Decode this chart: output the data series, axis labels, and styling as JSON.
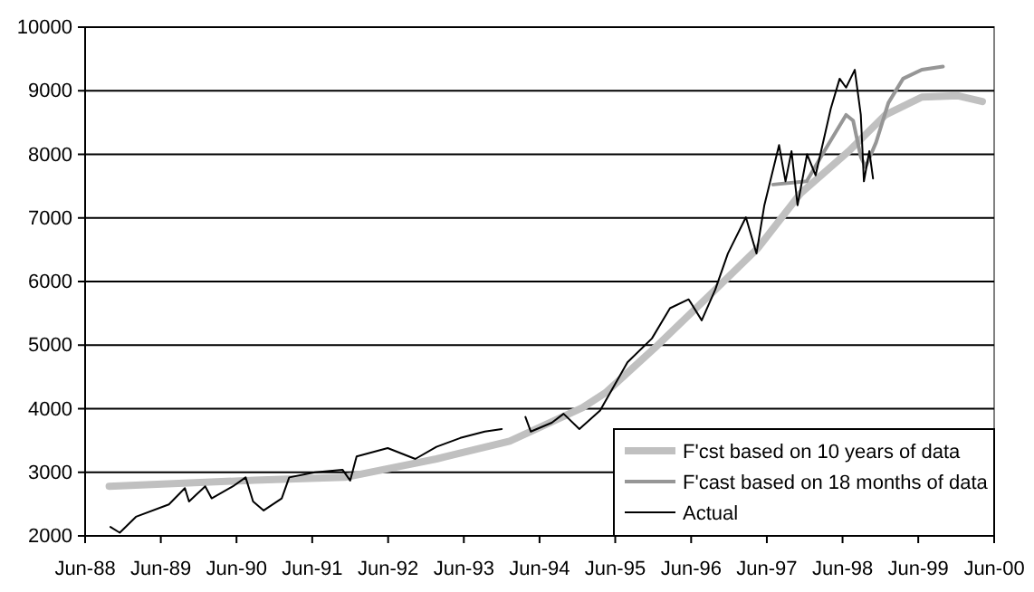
{
  "chart_data": {
    "type": "line",
    "xlim": [
      "1988-06",
      "2000-06"
    ],
    "xticks": [
      {
        "value": "1988-06",
        "label": "Jun-88"
      },
      {
        "value": "1989-06",
        "label": "Jun-89"
      },
      {
        "value": "1990-06",
        "label": "Jun-90"
      },
      {
        "value": "1991-06",
        "label": "Jun-91"
      },
      {
        "value": "1992-06",
        "label": "Jun-92"
      },
      {
        "value": "1993-06",
        "label": "Jun-93"
      },
      {
        "value": "1994-06",
        "label": "Jun-94"
      },
      {
        "value": "1995-06",
        "label": "Jun-95"
      },
      {
        "value": "1996-06",
        "label": "Jun-96"
      },
      {
        "value": "1997-06",
        "label": "Jun-97"
      },
      {
        "value": "1998-06",
        "label": "Jun-98"
      },
      {
        "value": "1999-06",
        "label": "Jun-99"
      },
      {
        "value": "2000-06",
        "label": "Jun-00"
      }
    ],
    "ylim": [
      2000,
      10000
    ],
    "yticks": [
      2000,
      3000,
      4000,
      5000,
      6000,
      7000,
      8000,
      9000,
      10000
    ],
    "grid": "y",
    "legend": "bottom right",
    "marker": "none",
    "line_style": "solid",
    "series": [
      {
        "name": "F'cst based on 10 years of data",
        "color": "#c0c0c0",
        "x": [
          "1988-09-25",
          "1990-08-25",
          "1991-11-05",
          "1993-01-20",
          "1994-01-08",
          "1994-12-25",
          "1995-04-15",
          "1995-12-10",
          "1996-09-25",
          "1997-04-20",
          "1997-11-10",
          "1998-07-01",
          "1998-12-25",
          "1999-06-18",
          "1999-12-10",
          "2000-04-05"
        ],
        "values": [
          2780,
          2875,
          2920,
          3210,
          3490,
          4015,
          4250,
          4960,
          5870,
          6530,
          7385,
          8050,
          8620,
          8900,
          8920,
          8830
        ]
      },
      {
        "name": "F'cast based on 18 months of data",
        "color": "#969696",
        "x": [
          "1997-07-01",
          "1997-12-10",
          "1998-03-05",
          "1998-06-18",
          "1998-07-22",
          "1998-08-28",
          "1998-09-20",
          "1998-11-10",
          "1999-01-08",
          "1999-03-20",
          "1999-06-18",
          "1999-09-28"
        ],
        "values": [
          7525,
          7575,
          8050,
          8620,
          8530,
          7960,
          7800,
          8190,
          8810,
          9190,
          9330,
          9380
        ]
      },
      {
        "name": "Actual",
        "color": "#000000",
        "x": [
          "1988-10-01",
          "1988-11-15",
          "1989-02-01",
          "1989-07-10",
          "1989-09-25",
          "1989-10-15",
          "1990-01-01",
          "1990-02-01",
          "1990-05-15",
          "1990-07-15",
          "1990-08-20",
          "1990-10-10",
          "1991-01-05",
          "1991-02-10",
          "1991-06-15",
          "1991-10-25",
          "1991-12-01",
          "1992-01-01",
          "1992-05-30",
          "1992-10-10",
          "1993-01-20",
          "1993-05-15",
          "1993-09-10",
          "1993-12-01",
          "1994-01-15",
          "1994-03-25",
          "1994-04-20",
          "1994-07-30",
          "1994-09-25",
          "1994-12-10",
          "1995-03-20",
          "1995-07-30",
          "1995-11-25",
          "1996-02-20",
          "1996-05-20",
          "1996-07-22",
          "1996-09-25",
          "1996-11-25",
          "1997-02-20",
          "1997-04-12",
          "1997-05-20",
          "1997-07-30",
          "1997-08-30",
          "1997-09-28",
          "1997-10-27",
          "1997-12-12",
          "1998-01-22",
          "1998-04-05",
          "1998-05-18",
          "1998-06-18",
          "1998-07-30",
          "1998-08-28",
          "1998-09-12",
          "1998-10-08",
          "1998-10-26"
        ],
        "values": [
          2140,
          2050,
          2300,
          2495,
          2750,
          2540,
          2780,
          2590,
          2780,
          2920,
          2540,
          2400,
          2590,
          2920,
          3000,
          3040,
          2870,
          3250,
          3380,
          3210,
          3400,
          3540,
          3640,
          3680,
          null,
          3870,
          3640,
          3780,
          3920,
          3680,
          3970,
          4730,
          5105,
          5580,
          5720,
          5390,
          5870,
          6440,
          7010,
          6440,
          7200,
          8145,
          7575,
          8050,
          7200,
          8000,
          7670,
          8715,
          9190,
          9050,
          9330,
          8620,
          7575,
          8050,
          7620
        ]
      }
    ]
  }
}
